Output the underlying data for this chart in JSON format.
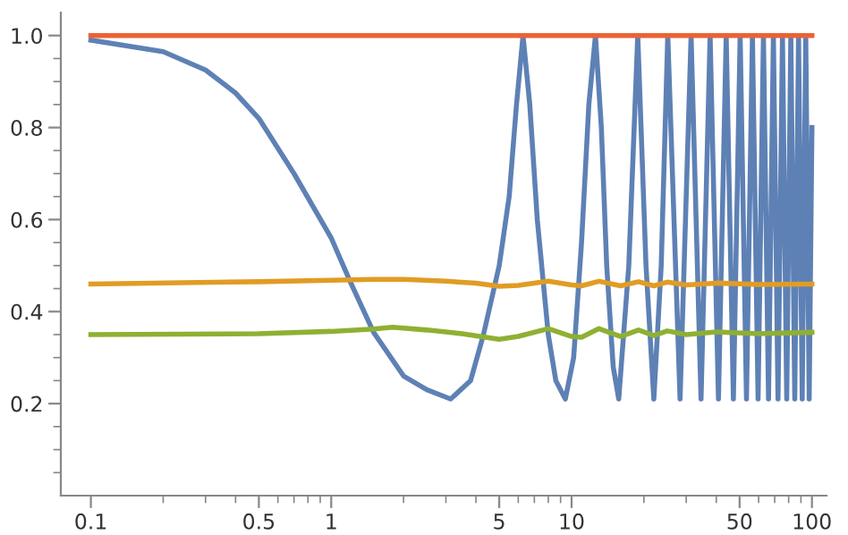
{
  "chart_data": {
    "type": "line",
    "log": "x",
    "grid": false,
    "marker": "none",
    "line_style": "solid",
    "xlim": [
      0.075,
      115
    ],
    "ylim": [
      0,
      1.05
    ],
    "xticks": [
      0.1,
      {
        "value": 0.2,
        "label": null
      },
      {
        "value": 0.3,
        "label": null
      },
      {
        "value": 0.4,
        "label": null
      },
      0.5,
      {
        "value": 0.6,
        "label": null
      },
      {
        "value": 0.7,
        "label": null
      },
      {
        "value": 0.8,
        "label": null
      },
      {
        "value": 0.9,
        "label": null
      },
      1,
      {
        "value": 2,
        "label": null
      },
      {
        "value": 3,
        "label": null
      },
      {
        "value": 4,
        "label": null
      },
      5,
      {
        "value": 6,
        "label": null
      },
      {
        "value": 7,
        "label": null
      },
      {
        "value": 8,
        "label": null
      },
      {
        "value": 9,
        "label": null
      },
      10,
      {
        "value": 20,
        "label": null
      },
      {
        "value": 30,
        "label": null
      },
      {
        "value": 40,
        "label": null
      },
      50,
      {
        "value": 60,
        "label": null
      },
      {
        "value": 70,
        "label": null
      },
      {
        "value": 80,
        "label": null
      },
      {
        "value": 90,
        "label": null
      },
      100
    ],
    "yticks": [
      {
        "value": 0.05,
        "label": null
      },
      {
        "value": 0.1,
        "label": null
      },
      {
        "value": 0.15,
        "label": null
      },
      0.2,
      {
        "value": 0.25,
        "label": null
      },
      {
        "value": 0.3,
        "label": null
      },
      {
        "value": 0.35,
        "label": null
      },
      0.4,
      {
        "value": 0.45,
        "label": null
      },
      {
        "value": 0.5,
        "label": null
      },
      {
        "value": 0.55,
        "label": null
      },
      0.6,
      {
        "value": 0.65,
        "label": null
      },
      {
        "value": 0.7,
        "label": null
      },
      {
        "value": 0.75,
        "label": null
      },
      0.8,
      {
        "value": 0.85,
        "label": null
      },
      {
        "value": 0.9,
        "label": null
      },
      {
        "value": 0.95,
        "label": null
      },
      {
        "value": 1,
        "label": "1.0"
      }
    ],
    "series": [
      {
        "color": "#5e81b5",
        "x": [
          0.1,
          0.2,
          0.3,
          0.4,
          0.5,
          0.7,
          1,
          1.2,
          1.5,
          2,
          2.5,
          3.14,
          3.8,
          4.3,
          5,
          5.5,
          5.9,
          6.28,
          6.7,
          7.2,
          8,
          8.6,
          9.42,
          10.2,
          11,
          11.8,
          12.57,
          13.3,
          14,
          14.9,
          15.71,
          17.3,
          18.85,
          20.4,
          21.99,
          23.6,
          25.13,
          28.27,
          31.42,
          34.56,
          37.7,
          40.84,
          43.98,
          47.12,
          50.27,
          53.41,
          56.55,
          59.69,
          62.83,
          65.97,
          69.12,
          72.26,
          75.4,
          78.54,
          81.68,
          84.82,
          87.96,
          91.11,
          94.25,
          97.39,
          100
        ],
        "values": [
          0.99,
          0.965,
          0.925,
          0.875,
          0.82,
          0.7,
          0.56,
          0.465,
          0.355,
          0.26,
          0.23,
          0.21,
          0.25,
          0.35,
          0.5,
          0.65,
          0.85,
          1.0,
          0.85,
          0.6,
          0.35,
          0.25,
          0.21,
          0.3,
          0.55,
          0.85,
          1.0,
          0.8,
          0.5,
          0.28,
          0.21,
          0.5,
          1.0,
          0.5,
          0.21,
          0.5,
          1.0,
          0.21,
          1.0,
          0.21,
          1.0,
          0.21,
          1.0,
          0.21,
          1.0,
          0.21,
          1.0,
          0.21,
          1.0,
          0.21,
          1.0,
          0.21,
          1.0,
          0.21,
          1.0,
          0.21,
          1.0,
          0.21,
          1.0,
          0.21,
          0.8
        ]
      },
      {
        "color": "#e19c24",
        "x": [
          0.1,
          0.5,
          1,
          1.5,
          2,
          3,
          4,
          5,
          6,
          8,
          10,
          11,
          13,
          16,
          19,
          22,
          25,
          30,
          40,
          60,
          100
        ],
        "values": [
          0.46,
          0.465,
          0.468,
          0.47,
          0.47,
          0.466,
          0.462,
          0.455,
          0.457,
          0.466,
          0.458,
          0.456,
          0.466,
          0.456,
          0.465,
          0.456,
          0.464,
          0.458,
          0.462,
          0.459,
          0.46
        ]
      },
      {
        "color": "#8fb032",
        "x": [
          0.1,
          0.5,
          1,
          1.5,
          1.8,
          2.5,
          3.5,
          5,
          6,
          8,
          10,
          11,
          13,
          16,
          19,
          22,
          25,
          30,
          40,
          60,
          100
        ],
        "values": [
          0.35,
          0.352,
          0.357,
          0.362,
          0.366,
          0.36,
          0.352,
          0.34,
          0.346,
          0.363,
          0.346,
          0.344,
          0.363,
          0.346,
          0.36,
          0.348,
          0.358,
          0.35,
          0.356,
          0.352,
          0.355
        ]
      },
      {
        "color": "#eb6235",
        "x": [
          0.1,
          100
        ],
        "values": [
          1.0,
          1.0
        ]
      }
    ]
  }
}
